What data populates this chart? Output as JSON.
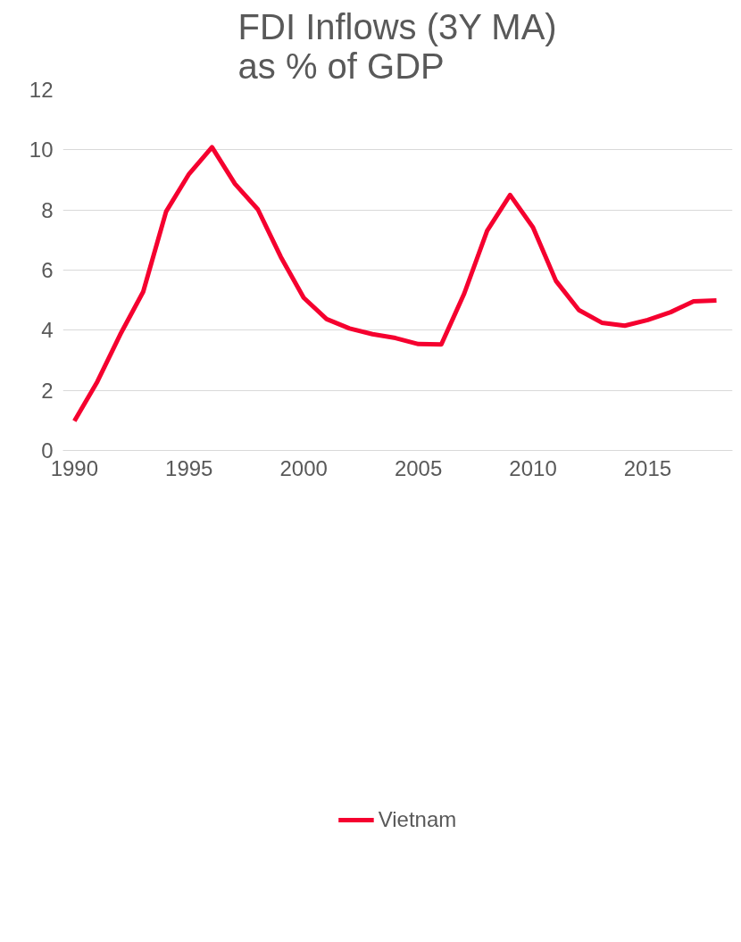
{
  "chart_data": {
    "type": "line",
    "title": "FDI Inflows (3Y MA)\nas % of GDP",
    "x": [
      1990,
      1991,
      1992,
      1993,
      1994,
      1995,
      1996,
      1997,
      1998,
      1999,
      2000,
      2001,
      2002,
      2003,
      2004,
      2005,
      2006,
      2007,
      2008,
      2009,
      2010,
      2011,
      2012,
      2013,
      2014,
      2015,
      2016,
      2017,
      2018
    ],
    "series": [
      {
        "name": "Vietnam",
        "color": "#f5002f",
        "values": [
          0.98,
          2.29,
          3.86,
          5.28,
          7.95,
          9.2,
          10.09,
          8.87,
          8.02,
          6.44,
          5.08,
          4.37,
          4.06,
          3.87,
          3.74,
          3.54,
          3.53,
          5.22,
          7.31,
          8.5,
          7.42,
          5.64,
          4.67,
          4.25,
          4.15,
          4.34,
          4.6,
          4.96,
          4.99
        ]
      }
    ],
    "xlim": [
      1989.5,
      2018.7
    ],
    "xticks": [
      1990,
      1995,
      2000,
      2005,
      2010,
      2015
    ],
    "ylim": [
      0,
      12
    ],
    "yticks": [
      0,
      2,
      4,
      6,
      8,
      10,
      12
    ],
    "grid": "y",
    "legend": "bottom",
    "marker": "none",
    "line_style": "solid"
  }
}
